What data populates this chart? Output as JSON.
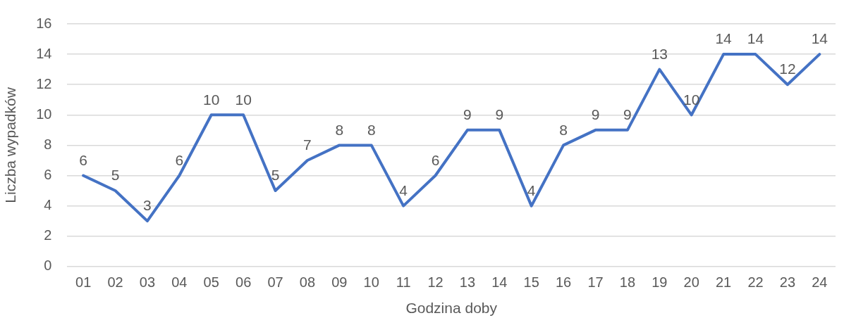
{
  "chart_data": {
    "type": "line",
    "xlabel": "Godzina doby",
    "ylabel": "Liczba wypadków",
    "categories": [
      "01",
      "02",
      "03",
      "04",
      "05",
      "06",
      "07",
      "08",
      "09",
      "10",
      "11",
      "12",
      "13",
      "14",
      "15",
      "16",
      "17",
      "18",
      "19",
      "20",
      "21",
      "22",
      "23",
      "24"
    ],
    "series": [
      {
        "color": "#4472c4",
        "values": [
          6,
          5,
          3,
          6,
          10,
          10,
          5,
          7,
          8,
          8,
          4,
          6,
          9,
          9,
          4,
          8,
          9,
          9,
          13,
          10,
          14,
          14,
          12,
          14
        ]
      }
    ],
    "ylim": [
      0,
      16
    ],
    "yticks": [
      0,
      2,
      4,
      6,
      8,
      10,
      12,
      14,
      16
    ],
    "grid": "y",
    "data_labels": true,
    "marker": "none",
    "line_style": "solid"
  }
}
